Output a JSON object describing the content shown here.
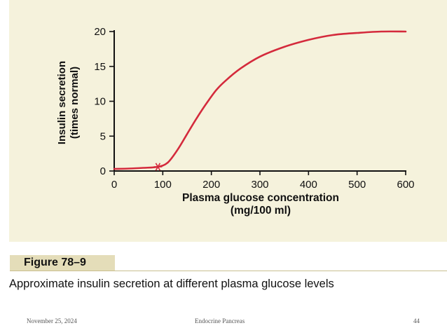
{
  "chart_data": {
    "type": "line",
    "title": "",
    "xlabel": "Plasma glucose concentration",
    "xlabel_units": "(mg/100 ml)",
    "ylabel": "Insulin secretion",
    "ylabel_units": "(times normal)",
    "xlim": [
      0,
      600
    ],
    "ylim": [
      0,
      20
    ],
    "xticks": [
      "0",
      "100",
      "200",
      "300",
      "400",
      "500",
      "600"
    ],
    "yticks": [
      "0",
      "5",
      "10",
      "15",
      "20"
    ],
    "grid": false,
    "series": [
      {
        "color": "#d42a3c",
        "x": [
          0,
          30,
          60,
          90,
          110,
          130,
          150,
          170,
          190,
          210,
          230,
          260,
          300,
          350,
          400,
          450,
          500,
          550,
          600
        ],
        "y": [
          0.3,
          0.35,
          0.45,
          0.6,
          1.2,
          3.0,
          5.3,
          7.6,
          9.7,
          11.6,
          13.0,
          14.7,
          16.4,
          17.8,
          18.8,
          19.5,
          19.8,
          20.0,
          20.0
        ]
      }
    ],
    "annotations": [
      {
        "type": "marker",
        "symbol": "asterisk",
        "x": 90,
        "y": 0.6,
        "color": "#d42a3c"
      }
    ]
  },
  "figure_label": "Figure 78–9",
  "caption": "Approximate insulin secretion at different plasma glucose levels",
  "footer": {
    "date": "November 25, 2024",
    "title": "Endocrine Pancreas",
    "page": "44"
  }
}
